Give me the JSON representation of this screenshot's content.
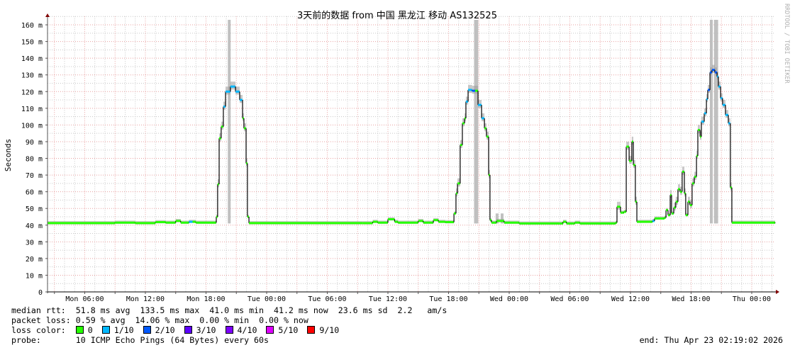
{
  "chart_data": {
    "type": "line",
    "title": "3天前的数据 from 中国 黑龙江 移动 AS132525",
    "ylabel": "Seconds",
    "watermark": "RRDTOOL / TOBI OETIKER",
    "xlim": [
      "2026-04-20 02:19",
      "2026-04-23 02:19"
    ],
    "ylim": [
      0,
      165
    ],
    "grid": true,
    "y_ticks": [
      {
        "value": 0,
        "label": "0"
      },
      {
        "value": 10,
        "label": "10 m"
      },
      {
        "value": 20,
        "label": "20 m"
      },
      {
        "value": 30,
        "label": "30 m"
      },
      {
        "value": 40,
        "label": "40 m"
      },
      {
        "value": 50,
        "label": "50 m"
      },
      {
        "value": 60,
        "label": "60 m"
      },
      {
        "value": 70,
        "label": "70 m"
      },
      {
        "value": 80,
        "label": "80 m"
      },
      {
        "value": 90,
        "label": "90 m"
      },
      {
        "value": 100,
        "label": "100 m"
      },
      {
        "value": 110,
        "label": "110 m"
      },
      {
        "value": 120,
        "label": "120 m"
      },
      {
        "value": 130,
        "label": "130 m"
      },
      {
        "value": 140,
        "label": "140 m"
      },
      {
        "value": 150,
        "label": "150 m"
      },
      {
        "value": 160,
        "label": "160 m"
      }
    ],
    "x_ticks": [
      {
        "time": "2026-04-20 06:00",
        "label": "Mon 06:00"
      },
      {
        "time": "2026-04-20 12:00",
        "label": "Mon 12:00"
      },
      {
        "time": "2026-04-20 18:00",
        "label": "Mon 18:00"
      },
      {
        "time": "2026-04-21 00:00",
        "label": "Tue 00:00"
      },
      {
        "time": "2026-04-21 06:00",
        "label": "Tue 06:00"
      },
      {
        "time": "2026-04-21 12:00",
        "label": "Tue 12:00"
      },
      {
        "time": "2026-04-21 18:00",
        "label": "Tue 18:00"
      },
      {
        "time": "2026-04-22 00:00",
        "label": "Wed 00:00"
      },
      {
        "time": "2026-04-22 06:00",
        "label": "Wed 06:00"
      },
      {
        "time": "2026-04-22 12:00",
        "label": "Wed 12:00"
      },
      {
        "time": "2026-04-22 18:00",
        "label": "Wed 18:00"
      },
      {
        "time": "2026-04-23 00:00",
        "label": "Thu 00:00"
      }
    ],
    "series_fields": [
      "time",
      "median_rtt_ms",
      "loss_of_10"
    ],
    "median_rtt": [
      [
        "2026-04-20 02:19",
        41.2,
        0
      ],
      [
        "2026-04-20 09:00",
        41.5,
        0
      ],
      [
        "2026-04-20 11:00",
        41.2,
        0
      ],
      [
        "2026-04-20 13:00",
        41.8,
        0
      ],
      [
        "2026-04-20 14:00",
        41.5,
        0
      ],
      [
        "2026-04-20 15:00",
        42.5,
        0
      ],
      [
        "2026-04-20 15:30",
        41.5,
        0
      ],
      [
        "2026-04-20 16:19",
        42,
        1
      ],
      [
        "2026-04-20 16:40",
        42,
        0
      ],
      [
        "2026-04-20 17:00",
        41.5,
        0
      ],
      [
        "2026-04-20 18:53",
        41.5,
        0
      ],
      [
        "2026-04-20 19:01",
        45,
        0
      ],
      [
        "2026-04-20 19:09",
        64.5,
        0
      ],
      [
        "2026-04-20 19:18",
        92,
        0
      ],
      [
        "2026-04-20 19:30",
        99,
        0
      ],
      [
        "2026-04-20 19:43",
        111,
        1
      ],
      [
        "2026-04-20 19:56",
        120,
        1
      ],
      [
        "2026-04-20 20:25",
        123,
        1
      ],
      [
        "2026-04-20 20:55",
        120,
        1
      ],
      [
        "2026-04-20 21:20",
        115,
        1
      ],
      [
        "2026-04-20 21:37",
        104,
        0
      ],
      [
        "2026-04-20 21:45",
        98,
        0
      ],
      [
        "2026-04-20 21:58",
        77,
        0
      ],
      [
        "2026-04-20 22:06",
        45,
        0
      ],
      [
        "2026-04-20 22:15",
        41.2,
        0
      ],
      [
        "2026-04-21 09:30",
        41.2,
        0
      ],
      [
        "2026-04-21 10:30",
        42,
        0
      ],
      [
        "2026-04-21 11:00",
        41.5,
        0
      ],
      [
        "2026-04-21 12:00",
        43.5,
        0
      ],
      [
        "2026-04-21 12:40",
        42,
        0
      ],
      [
        "2026-04-21 13:00",
        41.5,
        0
      ],
      [
        "2026-04-21 15:00",
        42.5,
        0
      ],
      [
        "2026-04-21 15:30",
        41.5,
        0
      ],
      [
        "2026-04-21 16:30",
        43,
        0
      ],
      [
        "2026-04-21 17:00",
        42,
        0
      ],
      [
        "2026-04-21 17:40",
        41.8,
        0
      ],
      [
        "2026-04-21 18:15",
        41.8,
        0
      ],
      [
        "2026-04-21 18:32",
        47,
        0
      ],
      [
        "2026-04-21 18:44",
        59,
        0
      ],
      [
        "2026-04-21 18:53",
        65,
        0
      ],
      [
        "2026-04-21 19:09",
        88,
        0
      ],
      [
        "2026-04-21 19:22",
        101,
        0
      ],
      [
        "2026-04-21 19:35",
        104,
        0
      ],
      [
        "2026-04-21 19:43",
        114,
        1
      ],
      [
        "2026-04-21 19:56",
        121,
        1
      ],
      [
        "2026-04-21 20:20",
        120.5,
        2
      ],
      [
        "2026-04-21 20:38",
        120.5,
        0
      ],
      [
        "2026-04-21 20:55",
        112,
        1
      ],
      [
        "2026-04-21 21:16",
        104,
        1
      ],
      [
        "2026-04-21 21:33",
        98,
        0
      ],
      [
        "2026-04-21 21:45",
        93,
        0
      ],
      [
        "2026-04-21 21:58",
        70,
        0
      ],
      [
        "2026-04-21 22:06",
        43,
        0
      ],
      [
        "2026-04-21 22:15",
        41.5,
        0
      ],
      [
        "2026-04-21 22:45",
        42.5,
        0
      ],
      [
        "2026-04-21 23:30",
        41.5,
        0
      ],
      [
        "2026-04-22 01:00",
        41,
        0
      ],
      [
        "2026-04-22 05:00",
        41,
        0
      ],
      [
        "2026-04-22 05:20",
        42,
        0
      ],
      [
        "2026-04-22 05:40",
        41,
        0
      ],
      [
        "2026-04-22 06:30",
        41.5,
        0
      ],
      [
        "2026-04-22 07:00",
        41,
        0
      ],
      [
        "2026-04-22 10:32",
        41.5,
        0
      ],
      [
        "2026-04-22 10:40",
        51,
        0
      ],
      [
        "2026-04-22 11:01",
        47.5,
        0
      ],
      [
        "2026-04-22 11:22",
        48,
        0
      ],
      [
        "2026-04-22 11:35",
        87,
        0
      ],
      [
        "2026-04-22 11:52",
        78.5,
        0
      ],
      [
        "2026-04-22 12:08",
        90,
        0
      ],
      [
        "2026-04-22 12:17",
        76,
        0
      ],
      [
        "2026-04-22 12:29",
        54,
        0
      ],
      [
        "2026-04-22 12:38",
        42,
        0
      ],
      [
        "2026-04-22 14:11",
        42.5,
        1
      ],
      [
        "2026-04-22 14:23",
        44,
        0
      ],
      [
        "2026-04-22 15:22",
        44.5,
        0
      ],
      [
        "2026-04-22 15:31",
        49,
        0
      ],
      [
        "2026-04-22 15:43",
        46,
        0
      ],
      [
        "2026-04-22 15:56",
        58,
        0
      ],
      [
        "2026-04-22 16:04",
        47,
        0
      ],
      [
        "2026-04-22 16:17",
        50.5,
        0
      ],
      [
        "2026-04-22 16:29",
        54,
        0
      ],
      [
        "2026-04-22 16:42",
        61.5,
        0
      ],
      [
        "2026-04-22 16:55",
        60,
        0
      ],
      [
        "2026-04-22 17:07",
        72,
        0
      ],
      [
        "2026-04-22 17:20",
        59,
        0
      ],
      [
        "2026-04-22 17:28",
        46,
        0
      ],
      [
        "2026-04-22 17:41",
        54,
        0
      ],
      [
        "2026-04-22 17:53",
        52,
        0
      ],
      [
        "2026-04-22 18:06",
        65,
        0
      ],
      [
        "2026-04-22 18:19",
        69,
        0
      ],
      [
        "2026-04-22 18:32",
        81.5,
        0
      ],
      [
        "2026-04-22 18:40",
        97,
        0
      ],
      [
        "2026-04-22 18:53",
        93,
        0
      ],
      [
        "2026-04-22 19:01",
        102,
        1
      ],
      [
        "2026-04-22 19:18",
        107,
        1
      ],
      [
        "2026-04-22 19:31",
        115.5,
        1
      ],
      [
        "2026-04-22 19:39",
        121,
        2
      ],
      [
        "2026-04-22 19:52",
        131.5,
        2
      ],
      [
        "2026-04-22 20:04",
        133,
        2
      ],
      [
        "2026-04-22 20:21",
        131.5,
        2
      ],
      [
        "2026-04-22 20:34",
        129,
        1
      ],
      [
        "2026-04-22 20:42",
        123,
        1
      ],
      [
        "2026-04-22 20:55",
        116,
        1
      ],
      [
        "2026-04-22 21:07",
        112,
        1
      ],
      [
        "2026-04-22 21:24",
        106,
        1
      ],
      [
        "2026-04-22 21:41",
        101,
        1
      ],
      [
        "2026-04-22 21:53",
        62.5,
        0
      ],
      [
        "2026-04-22 22:02",
        41.5,
        0
      ],
      [
        "2026-04-23 02:19",
        41.2,
        0
      ]
    ],
    "smoke_spikes": [
      {
        "time": "2026-04-20 20:18",
        "max": 163
      },
      {
        "time": "2026-04-21 20:40",
        "max": 163
      },
      {
        "time": "2026-04-21 20:48",
        "max": 163
      },
      {
        "time": "2026-04-21 22:48",
        "max": 47
      },
      {
        "time": "2026-04-21 23:18",
        "max": 47
      },
      {
        "time": "2026-04-22 20:00",
        "max": 163
      },
      {
        "time": "2026-04-22 20:24",
        "max": 163
      },
      {
        "time": "2026-04-22 20:32",
        "max": 163
      }
    ]
  },
  "legend": {
    "median_rtt": {
      "label": "median rtt:",
      "avg": "51.8 ms avg",
      "max": "133.5 ms max",
      "min": "41.0 ms min",
      "now": "41.2 ms now",
      "sd": "23.6 ms sd",
      "am_s": "2.2",
      "am_s_unit": "am/s"
    },
    "packet_loss": {
      "label": "packet loss:",
      "avg": "0.59 % avg",
      "max": "14.06 % max",
      "min": "0.00 % min",
      "now": "0.00 % now"
    },
    "loss_color": {
      "label": "loss color:",
      "items": [
        {
          "label": "0",
          "color": "#26ff00"
        },
        {
          "label": "1/10",
          "color": "#00b8ff"
        },
        {
          "label": "2/10",
          "color": "#0059ff"
        },
        {
          "label": "3/10",
          "color": "#5e00ff"
        },
        {
          "label": "4/10",
          "color": "#7e00ff"
        },
        {
          "label": "5/10",
          "color": "#dd00ff"
        },
        {
          "label": "9/10",
          "color": "#ff0000"
        }
      ]
    },
    "probe": {
      "label": "probe:",
      "value": "10 ICMP Echo Pings (64 Bytes) every 60s"
    },
    "end": "end: Thu Apr 23 02:19:02 2026"
  },
  "colors": {
    "major_grid": "#e8a0a0",
    "minor_grid": "#c8c8c8",
    "axis": "#000000",
    "arrow": "#800000",
    "smoke": "#c0c0c0",
    "median_line": "#000000"
  }
}
